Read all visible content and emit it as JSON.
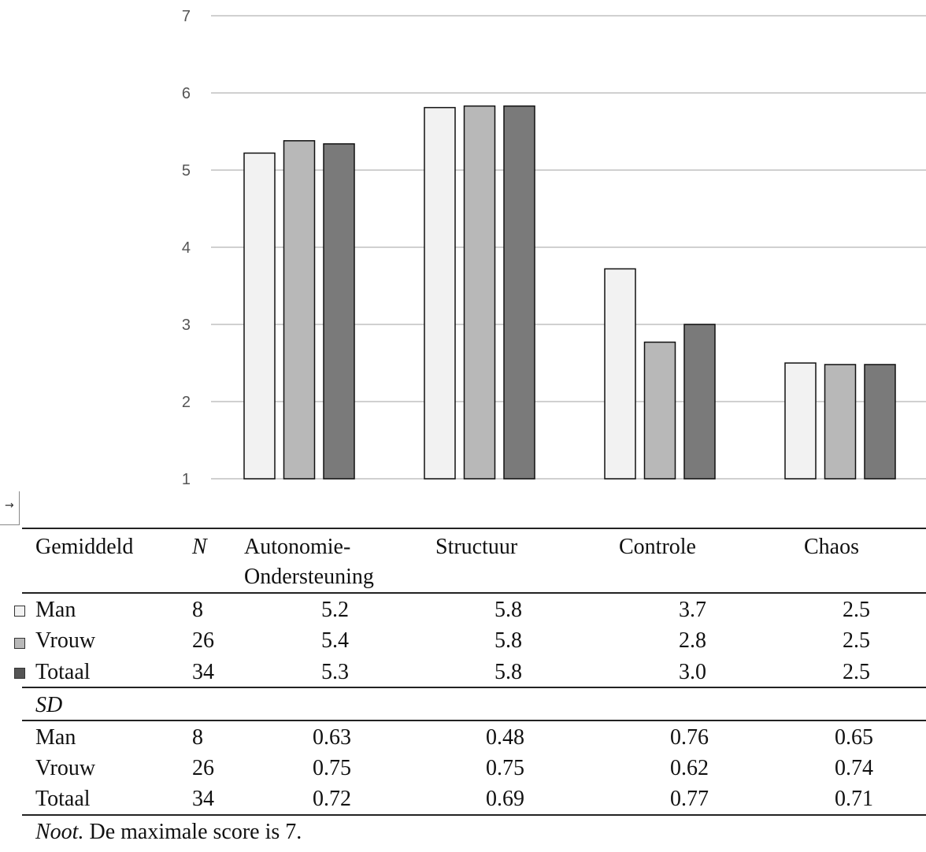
{
  "chart_data": {
    "type": "bar",
    "categories": [
      "Autonomie-Ondersteuning",
      "Structuur",
      "Controle",
      "Chaos"
    ],
    "series": [
      {
        "name": "Man",
        "values": [
          5.22,
          5.81,
          3.72,
          2.5
        ],
        "color": "#f2f2f2"
      },
      {
        "name": "Vrouw",
        "values": [
          5.38,
          5.83,
          2.77,
          2.48
        ],
        "color": "#b8b8b8"
      },
      {
        "name": "Totaal",
        "values": [
          5.34,
          5.83,
          3.0,
          2.48
        ],
        "color": "#7a7a7a"
      }
    ],
    "yticks": [
      1,
      2,
      3,
      4,
      5,
      6,
      7
    ],
    "ylim": [
      1,
      7
    ],
    "grid": true,
    "title": "",
    "xlabel": "",
    "ylabel": ""
  },
  "table": {
    "header": {
      "col0": "Gemiddeld",
      "col1": "N",
      "col2_line1": "Autonomie-",
      "col2_line2": "Ondersteuning",
      "col3": "Structuur",
      "col4": "Controle",
      "col5": "Chaos"
    },
    "mean_rows": [
      {
        "label": "Man",
        "n": "8",
        "values": [
          "5.2",
          "5.8",
          "3.7",
          "2.5"
        ]
      },
      {
        "label": "Vrouw",
        "n": "26",
        "values": [
          "5.4",
          "5.8",
          "2.8",
          "2.5"
        ]
      },
      {
        "label": "Totaal",
        "n": "34",
        "values": [
          "5.3",
          "5.8",
          "3.0",
          "2.5"
        ]
      }
    ],
    "sd_label": "SD",
    "sd_rows": [
      {
        "label": "Man",
        "n": "8",
        "values": [
          "0.63",
          "0.48",
          "0.76",
          "0.65"
        ]
      },
      {
        "label": "Vrouw",
        "n": "26",
        "values": [
          "0.75",
          "0.75",
          "0.62",
          "0.74"
        ]
      },
      {
        "label": "Totaal",
        "n": "34",
        "values": [
          "0.72",
          "0.69",
          "0.77",
          "0.71"
        ]
      }
    ]
  },
  "note": {
    "label": "Noot.",
    "text": " De maximale score is 7."
  }
}
